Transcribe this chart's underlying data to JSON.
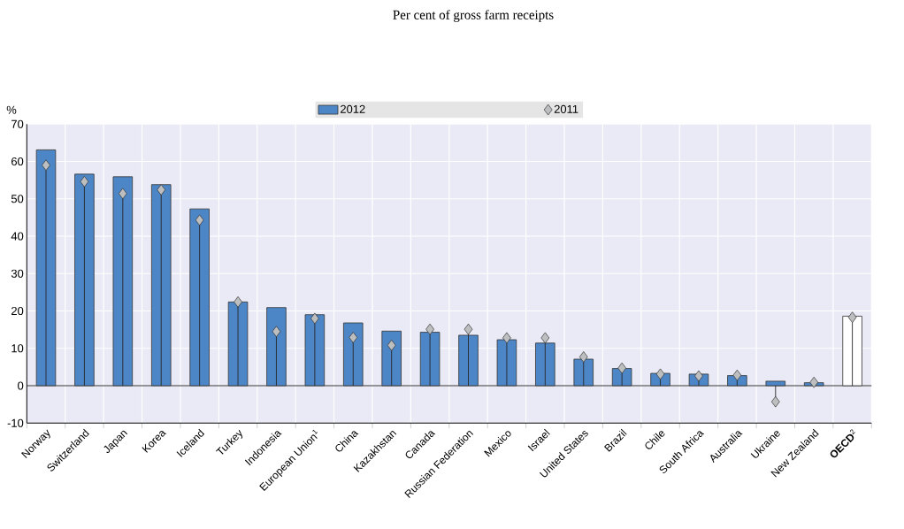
{
  "chart_data": {
    "type": "bar",
    "subtitle": "Per cent of gross farm receipts",
    "ylabel": "%",
    "categories": [
      "Norway",
      "Switzerland",
      "Japan",
      "Korea",
      "Iceland",
      "Turkey",
      "Indonesia",
      "European Union$^{1}$",
      "China",
      "Kazakhstan",
      "Canada",
      "Russian Federation",
      "Mexico",
      "Israel",
      "United States",
      "Brazil",
      "Chile",
      "South Africa",
      "Australia",
      "Ukraine",
      "New Zealand",
      "**OECD**$^{2}$"
    ],
    "series": [
      {
        "name": "2012",
        "color": "#4d86c6",
        "colors": [
          "#4d86c6",
          "#4d86c6",
          "#4d86c6",
          "#4d86c6",
          "#4d86c6",
          "#4d86c6",
          "#4d86c6",
          "#4d86c6",
          "#4d86c6",
          "#4d86c6",
          "#4d86c6",
          "#4d86c6",
          "#4d86c6",
          "#4d86c6",
          "#4d86c6",
          "#4d86c6",
          "#4d86c6",
          "#4d86c6",
          "#4d86c6",
          "#4d86c6",
          "#4d86c6",
          "#ffffff"
        ],
        "values": [
          63.1,
          56.6,
          55.9,
          53.8,
          47.3,
          22.4,
          20.9,
          19.0,
          16.8,
          14.6,
          14.3,
          13.5,
          12.3,
          11.4,
          7.1,
          4.6,
          3.3,
          3.1,
          2.7,
          1.2,
          0.8,
          18.6
        ]
      },
      {
        "name": "2011",
        "type": "lollipop",
        "color": "#bdbec0",
        "marker": "diamond",
        "values": [
          59.0,
          54.6,
          51.4,
          52.4,
          44.3,
          22.4,
          14.5,
          18.0,
          12.9,
          10.8,
          15.1,
          15.1,
          12.8,
          12.8,
          7.7,
          4.7,
          3.1,
          2.6,
          2.8,
          -4.3,
          0.9,
          18.3
        ]
      }
    ],
    "ylim": [
      -10,
      70
    ],
    "yticks": [
      -10,
      0,
      10,
      20,
      30,
      40,
      50,
      60,
      70
    ],
    "grid": true,
    "legend": "top"
  }
}
